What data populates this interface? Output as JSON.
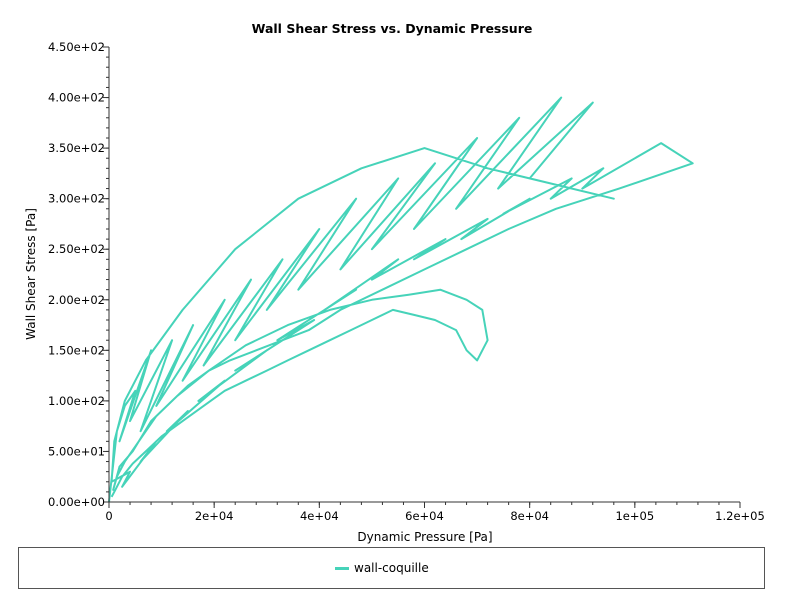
{
  "chart_data": {
    "type": "line",
    "title": "Wall Shear Stress vs. Dynamic Pressure",
    "xlabel": "Dynamic Pressure [Pa]",
    "ylabel": "Wall Shear Stress [Pa]",
    "xlim": [
      0,
      120000
    ],
    "ylim": [
      0,
      450
    ],
    "x_ticks": [
      0,
      20000,
      40000,
      60000,
      80000,
      100000,
      120000
    ],
    "x_tick_labels": [
      "0",
      "2e+04",
      "4e+04",
      "6e+04",
      "8e+04",
      "1e+05",
      "1.2e+05"
    ],
    "y_ticks": [
      0,
      50,
      100,
      150,
      200,
      250,
      300,
      350,
      400,
      450
    ],
    "y_tick_labels": [
      "0.00e+00",
      "5.00e+01",
      "1.00e+02",
      "1.50e+02",
      "2.00e+02",
      "2.50e+02",
      "3.00e+02",
      "3.50e+02",
      "4.00e+02",
      "4.50e+02"
    ],
    "grid": false,
    "legend_position": "bottom",
    "series": [
      {
        "name": "wall-coquille",
        "color": "#46d3b9",
        "x": [
          0,
          1500,
          3000,
          5000,
          2000,
          8000,
          4000,
          12000,
          6000,
          16000,
          9000,
          22000,
          14000,
          27000,
          18000,
          33000,
          24000,
          40000,
          30000,
          47000,
          36000,
          55000,
          44000,
          62000,
          50000,
          70000,
          58000,
          78000,
          66000,
          86000,
          74000,
          92000,
          80000,
          96000,
          72000,
          60000,
          48000,
          36000,
          24000,
          14000,
          7000,
          3000,
          1000,
          500,
          4000,
          2500,
          9000,
          6000,
          15000,
          11000,
          22000,
          17000,
          30000,
          24000,
          39000,
          32000,
          47000,
          41000,
          55000,
          50000,
          64000,
          58000,
          72000,
          67000,
          80000,
          75000,
          88000,
          84000,
          94000,
          90000,
          105000,
          111000,
          97000,
          85000,
          76000,
          68000,
          60000,
          52000,
          44000,
          38000,
          33000,
          28000,
          23000,
          19000,
          15000,
          12000,
          9000,
          7000,
          5000,
          3000,
          1500,
          800,
          2000,
          4500,
          8000,
          13000,
          19000,
          26000,
          34000,
          42000,
          50000,
          57000,
          63000,
          68000,
          71000,
          72000,
          70000,
          68000,
          66000,
          62000,
          58000,
          54000,
          50000,
          46000,
          42000,
          38000,
          34000,
          30000,
          26000,
          22000,
          18000,
          14000,
          10000,
          7000,
          4500,
          2500,
          1200,
          500
        ],
        "y": [
          0,
          70,
          95,
          110,
          60,
          150,
          80,
          160,
          70,
          175,
          95,
          200,
          120,
          220,
          135,
          240,
          160,
          270,
          190,
          300,
          210,
          320,
          230,
          335,
          250,
          360,
          270,
          380,
          290,
          400,
          310,
          395,
          320,
          300,
          330,
          350,
          330,
          300,
          250,
          190,
          140,
          100,
          60,
          20,
          30,
          15,
          60,
          40,
          90,
          70,
          120,
          100,
          150,
          130,
          180,
          160,
          210,
          190,
          240,
          220,
          260,
          240,
          280,
          260,
          300,
          285,
          320,
          300,
          330,
          310,
          355,
          335,
          310,
          290,
          270,
          250,
          230,
          210,
          190,
          170,
          160,
          150,
          140,
          130,
          115,
          100,
          85,
          70,
          55,
          40,
          25,
          12,
          35,
          50,
          80,
          105,
          130,
          155,
          175,
          190,
          200,
          205,
          210,
          200,
          190,
          160,
          140,
          150,
          170,
          180,
          185,
          190,
          180,
          170,
          160,
          150,
          140,
          130,
          120,
          110,
          95,
          80,
          65,
          50,
          38,
          25,
          12,
          5
        ]
      }
    ]
  }
}
